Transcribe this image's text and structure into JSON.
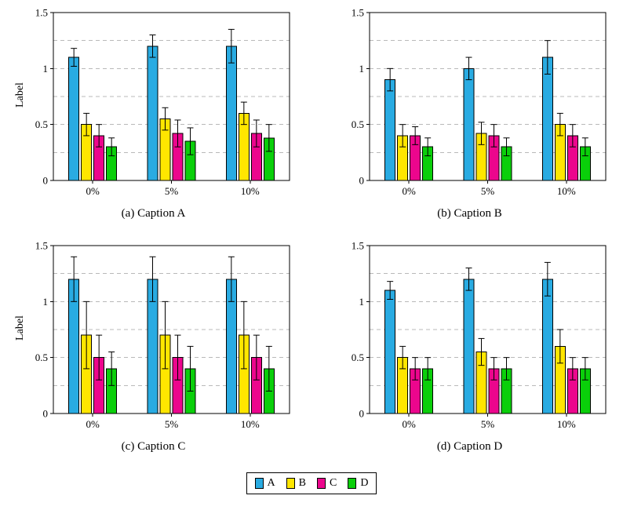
{
  "palette": {
    "A": "#29ABE2",
    "B": "#FFE600",
    "C": "#EC068D",
    "D": "#0ACF0A"
  },
  "grid_color": "#b9b9b9",
  "legend": {
    "items": [
      {
        "label": "A",
        "series": "A"
      },
      {
        "label": "B",
        "series": "B"
      },
      {
        "label": "C",
        "series": "C"
      },
      {
        "label": "D",
        "series": "D"
      }
    ]
  },
  "chart_data": [
    {
      "type": "bar",
      "caption": "(a) Caption A",
      "ylabel": "Label",
      "categories": [
        "0%",
        "5%",
        "10%"
      ],
      "ylim": [
        0,
        1.5
      ],
      "yticks": [
        0,
        0.5,
        1,
        1.5
      ],
      "ytick_labels": [
        "0",
        "0.5",
        "1",
        "1.5"
      ],
      "gridlines": [
        0.25,
        0.5,
        0.75,
        1,
        1.25
      ],
      "series": [
        {
          "name": "A",
          "values": [
            1.1,
            1.2,
            1.2
          ],
          "errors": [
            0.08,
            0.1,
            0.15
          ]
        },
        {
          "name": "B",
          "values": [
            0.5,
            0.55,
            0.6
          ],
          "errors": [
            0.1,
            0.1,
            0.1
          ]
        },
        {
          "name": "C",
          "values": [
            0.4,
            0.42,
            0.42
          ],
          "errors": [
            0.1,
            0.12,
            0.12
          ]
        },
        {
          "name": "D",
          "values": [
            0.3,
            0.35,
            0.38
          ],
          "errors": [
            0.08,
            0.12,
            0.12
          ]
        }
      ]
    },
    {
      "type": "bar",
      "caption": "(b) Caption B",
      "ylabel": "",
      "categories": [
        "0%",
        "5%",
        "10%"
      ],
      "ylim": [
        0,
        1.5
      ],
      "yticks": [
        0,
        0.5,
        1,
        1.5
      ],
      "ytick_labels": [
        "0",
        "0.5",
        "1",
        "1.5"
      ],
      "gridlines": [
        0.25,
        0.5,
        0.75,
        1,
        1.25
      ],
      "series": [
        {
          "name": "A",
          "values": [
            0.9,
            1.0,
            1.1
          ],
          "errors": [
            0.1,
            0.1,
            0.15
          ]
        },
        {
          "name": "B",
          "values": [
            0.4,
            0.42,
            0.5
          ],
          "errors": [
            0.1,
            0.1,
            0.1
          ]
        },
        {
          "name": "C",
          "values": [
            0.4,
            0.4,
            0.4
          ],
          "errors": [
            0.08,
            0.1,
            0.1
          ]
        },
        {
          "name": "D",
          "values": [
            0.3,
            0.3,
            0.3
          ],
          "errors": [
            0.08,
            0.08,
            0.08
          ]
        }
      ]
    },
    {
      "type": "bar",
      "caption": "(c) Caption C",
      "ylabel": "Label",
      "categories": [
        "0%",
        "5%",
        "10%"
      ],
      "ylim": [
        0,
        1.5
      ],
      "yticks": [
        0,
        0.5,
        1,
        1.5
      ],
      "ytick_labels": [
        "0",
        "0.5",
        "1",
        "1.5"
      ],
      "gridlines": [
        0.25,
        0.5,
        0.75,
        1,
        1.25
      ],
      "series": [
        {
          "name": "A",
          "values": [
            1.2,
            1.2,
            1.2
          ],
          "errors": [
            0.2,
            0.2,
            0.2
          ]
        },
        {
          "name": "B",
          "values": [
            0.7,
            0.7,
            0.7
          ],
          "errors": [
            0.3,
            0.3,
            0.3
          ]
        },
        {
          "name": "C",
          "values": [
            0.5,
            0.5,
            0.5
          ],
          "errors": [
            0.2,
            0.2,
            0.2
          ]
        },
        {
          "name": "D",
          "values": [
            0.4,
            0.4,
            0.4
          ],
          "errors": [
            0.15,
            0.2,
            0.2
          ]
        }
      ]
    },
    {
      "type": "bar",
      "caption": "(d) Caption D",
      "ylabel": "",
      "categories": [
        "0%",
        "5%",
        "10%"
      ],
      "ylim": [
        0,
        1.5
      ],
      "yticks": [
        0,
        0.5,
        1,
        1.5
      ],
      "ytick_labels": [
        "0",
        "0.5",
        "1",
        "1.5"
      ],
      "gridlines": [
        0.25,
        0.5,
        0.75,
        1,
        1.25
      ],
      "series": [
        {
          "name": "A",
          "values": [
            1.1,
            1.2,
            1.2
          ],
          "errors": [
            0.08,
            0.1,
            0.15
          ]
        },
        {
          "name": "B",
          "values": [
            0.5,
            0.55,
            0.6
          ],
          "errors": [
            0.1,
            0.12,
            0.15
          ]
        },
        {
          "name": "C",
          "values": [
            0.4,
            0.4,
            0.4
          ],
          "errors": [
            0.1,
            0.1,
            0.1
          ]
        },
        {
          "name": "D",
          "values": [
            0.4,
            0.4,
            0.4
          ],
          "errors": [
            0.1,
            0.1,
            0.1
          ]
        }
      ]
    }
  ]
}
